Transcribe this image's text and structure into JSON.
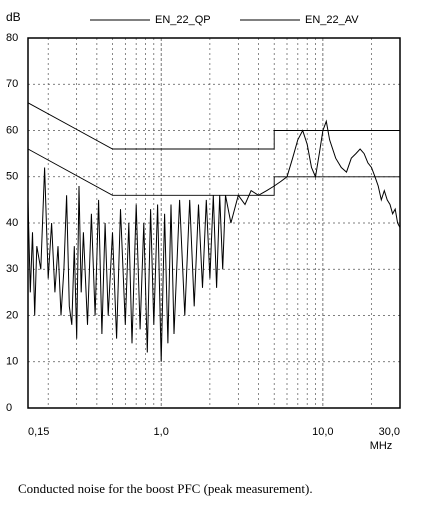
{
  "chart_data": {
    "type": "line",
    "y_unit_label": "dB",
    "x_axis_label": "MHz",
    "caption": "Conducted noise for the boost PFC (peak measurement).",
    "xscale": "log",
    "grid": true,
    "xlim": [
      0.15,
      30
    ],
    "ylim": [
      0,
      80
    ],
    "xticks": [
      {
        "value": 0.15,
        "label": "0,15"
      },
      {
        "value": 1,
        "label": "1,0"
      },
      {
        "value": 10,
        "label": "10,0"
      },
      {
        "value": 30,
        "label": "30,0"
      }
    ],
    "xgrid_minor": [
      0.2,
      0.3,
      0.4,
      0.5,
      0.6,
      0.7,
      0.8,
      0.9,
      2,
      3,
      4,
      5,
      6,
      7,
      8,
      9,
      20
    ],
    "yticks": [
      0,
      10,
      20,
      30,
      40,
      50,
      60,
      70,
      80
    ],
    "series": [
      {
        "name": "EN_22_QP",
        "color": "#000000",
        "legend": true,
        "x": [
          0.15,
          0.5,
          5,
          5,
          30
        ],
        "values": [
          66,
          56,
          56,
          60,
          60
        ]
      },
      {
        "name": "EN_22_AV",
        "color": "#000000",
        "legend": true,
        "x": [
          0.15,
          0.5,
          5,
          5,
          30
        ],
        "values": [
          56,
          46,
          46,
          50,
          50
        ]
      },
      {
        "color": "#000000",
        "legend": false,
        "x": [
          0.15,
          0.155,
          0.16,
          0.165,
          0.17,
          0.18,
          0.19,
          0.2,
          0.21,
          0.22,
          0.23,
          0.24,
          0.25,
          0.26,
          0.27,
          0.28,
          0.29,
          0.3,
          0.31,
          0.32,
          0.33,
          0.35,
          0.37,
          0.39,
          0.41,
          0.43,
          0.45,
          0.47,
          0.5,
          0.53,
          0.56,
          0.6,
          0.63,
          0.66,
          0.7,
          0.74,
          0.78,
          0.82,
          0.86,
          0.9,
          0.95,
          1,
          1.05,
          1.1,
          1.15,
          1.2,
          1.3,
          1.4,
          1.5,
          1.6,
          1.7,
          1.8,
          1.9,
          2,
          2.1,
          2.2,
          2.3,
          2.4,
          2.5,
          2.7,
          3,
          3.3,
          3.6,
          4,
          4.5,
          5,
          5.5,
          6,
          6.5,
          7,
          7.5,
          8,
          8.5,
          9,
          9.5,
          10,
          10.5,
          11,
          12,
          13,
          14,
          15,
          16,
          17,
          18,
          19,
          20,
          21,
          22,
          23,
          24,
          25,
          26,
          27,
          28,
          29,
          30
        ],
        "values": [
          45,
          25,
          38,
          20,
          35,
          30,
          52,
          28,
          40,
          25,
          35,
          20,
          30,
          46,
          22,
          18,
          35,
          15,
          48,
          25,
          38,
          18,
          42,
          20,
          45,
          16,
          40,
          20,
          38,
          15,
          43,
          18,
          40,
          14,
          44,
          17,
          40,
          12,
          43,
          18,
          44,
          10,
          42,
          14,
          44,
          16,
          45,
          20,
          45,
          22,
          44,
          26,
          45,
          28,
          46,
          26,
          46,
          30,
          46,
          40,
          46,
          44,
          47,
          46,
          47,
          48,
          49,
          50,
          54,
          58,
          60,
          57,
          52,
          50,
          55,
          60,
          62,
          58,
          54,
          52,
          51,
          54,
          55,
          56,
          55,
          53,
          52,
          50,
          48,
          45,
          47,
          45,
          44,
          42,
          43,
          40,
          39
        ]
      }
    ]
  }
}
